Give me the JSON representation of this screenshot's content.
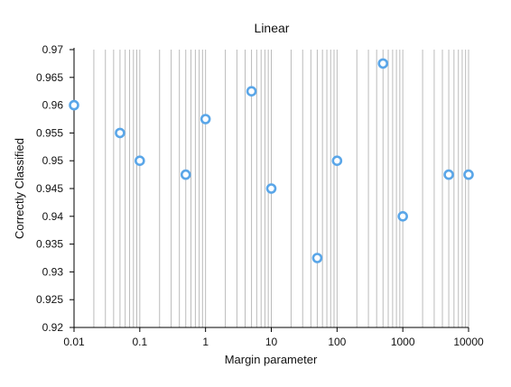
{
  "chart_data": {
    "type": "scatter",
    "title": "Linear",
    "xlabel": "Margin parameter",
    "ylabel": "Correctly Classified",
    "xscale": "log",
    "xlim": [
      0.01,
      10000
    ],
    "ylim": [
      0.92,
      0.97
    ],
    "x_ticks": [
      0.01,
      0.1,
      1,
      10,
      100,
      1000,
      10000
    ],
    "x_tick_labels": [
      "0.01",
      "0.1",
      "1",
      "10",
      "100",
      "1000",
      "10000"
    ],
    "y_ticks": [
      0.92,
      0.925,
      0.93,
      0.935,
      0.94,
      0.945,
      0.95,
      0.955,
      0.96,
      0.965,
      0.97
    ],
    "y_tick_labels": [
      "0.92",
      "0.925",
      "0.93",
      "0.935",
      "0.94",
      "0.945",
      "0.95",
      "0.955",
      "0.96",
      "0.965",
      "0.97"
    ],
    "grid": "vertical minor and major lines",
    "legend": "none",
    "marker_color": "#5aa6e8",
    "grid_color": "#bbbbbb",
    "x": [
      0.01,
      0.05,
      0.1,
      0.5,
      1,
      5,
      10,
      50,
      100,
      500,
      1000,
      5000,
      10000
    ],
    "values": [
      0.96,
      0.955,
      0.95,
      0.9475,
      0.9575,
      0.9625,
      0.945,
      0.9325,
      0.95,
      0.9675,
      0.94,
      0.9475,
      0.9475
    ]
  }
}
